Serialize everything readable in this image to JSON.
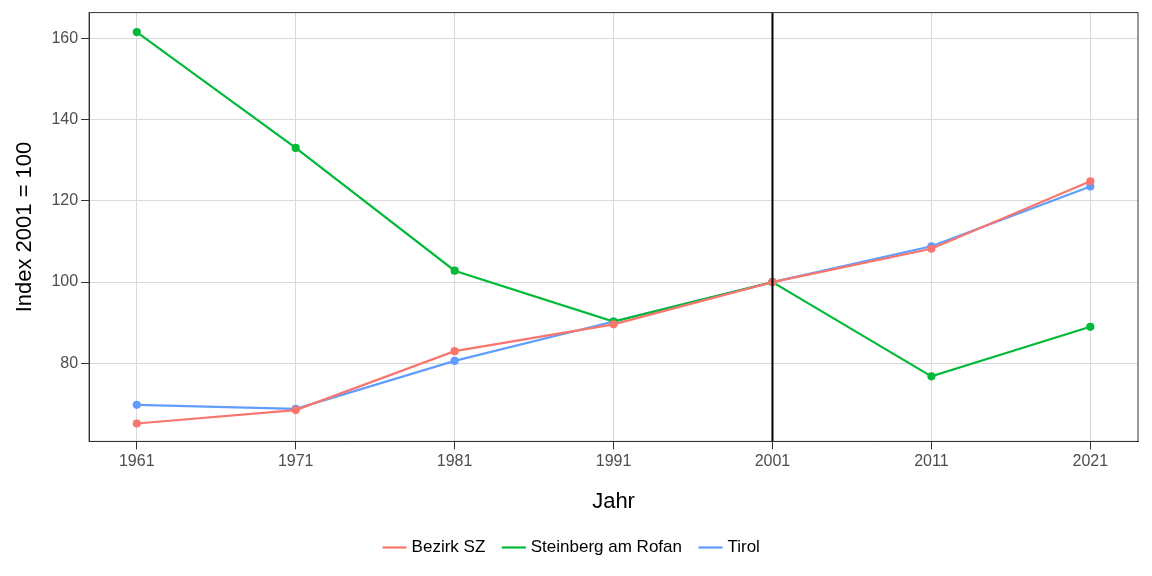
{
  "chart_data": {
    "type": "line",
    "x_label": "Jahr",
    "y_label": "Index 2001 = 100",
    "x": [
      1961,
      1971,
      1981,
      1991,
      2001,
      2011,
      2021
    ],
    "series": [
      {
        "name": "Bezirk SZ",
        "color": "#F8766D",
        "marker": "circle",
        "values": [
          65.2,
          68.5,
          83.0,
          89.6,
          100,
          108.2,
          124.8
        ]
      },
      {
        "name": "Steinberg am Rofan",
        "color": "#00BA38",
        "marker": "circle",
        "values": [
          161.5,
          133.0,
          102.8,
          90.3,
          100,
          76.8,
          89.0
        ]
      },
      {
        "name": "Tirol",
        "color": "#619CFF",
        "marker": "circle",
        "values": [
          69.8,
          68.8,
          80.6,
          90.3,
          100,
          108.8,
          123.5
        ]
      }
    ],
    "xlim": [
      1958,
      2024
    ],
    "xticks": [
      1961,
      1971,
      1981,
      1991,
      2001,
      2011,
      2021
    ],
    "ylim": [
      60.8,
      166.3
    ],
    "yticks": [
      80,
      100,
      120,
      140,
      160
    ],
    "vline": 2001,
    "grid": true,
    "legend": "bottom"
  }
}
